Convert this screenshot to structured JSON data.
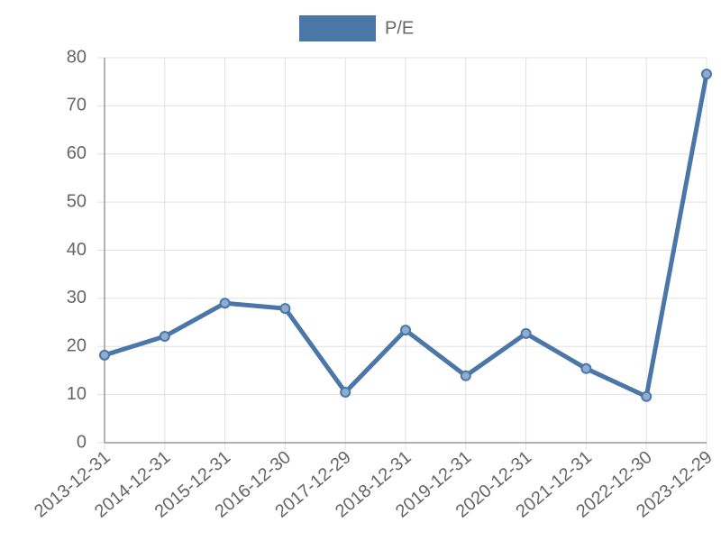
{
  "chart_data": {
    "type": "line",
    "categories": [
      "2013-12-31",
      "2014-12-31",
      "2015-12-31",
      "2016-12-30",
      "2017-12-29",
      "2018-12-31",
      "2019-12-31",
      "2020-12-31",
      "2021-12-31",
      "2022-12-30",
      "2023-12-29"
    ],
    "series": [
      {
        "name": "P/E",
        "color": "#4a76a8",
        "values": [
          18.2,
          22.1,
          29.0,
          27.9,
          10.5,
          23.4,
          13.9,
          22.7,
          15.4,
          9.6,
          76.6
        ]
      }
    ],
    "ylim": [
      0,
      80
    ],
    "yticks": [
      0,
      10,
      20,
      30,
      40,
      50,
      60,
      70,
      80
    ],
    "grid": true,
    "legend": "top"
  }
}
